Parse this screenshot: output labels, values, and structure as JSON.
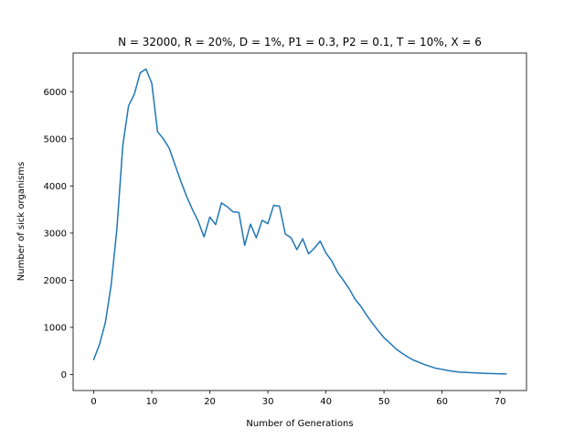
{
  "chart_data": {
    "type": "line",
    "title": "N = 32000, R = 20%, D = 1%, P1 = 0.3, P2 = 0.1, T = 10%, X = 6",
    "xlabel": "Number of Generations",
    "ylabel": "Number of sick organisms",
    "xlim": [
      -3.55,
      74.55
    ],
    "ylim": [
      -340,
      6820
    ],
    "xticks": [
      0,
      10,
      20,
      30,
      40,
      50,
      60,
      70
    ],
    "yticks": [
      0,
      1000,
      2000,
      3000,
      4000,
      5000,
      6000
    ],
    "grid": false,
    "series": [
      {
        "color": "#1f77b4",
        "x": [
          0,
          1,
          2,
          3,
          4,
          5,
          6,
          7,
          8,
          9,
          10,
          11,
          12,
          13,
          14,
          15,
          16,
          17,
          18,
          19,
          20,
          21,
          22,
          23,
          24,
          25,
          26,
          27,
          28,
          29,
          30,
          31,
          32,
          33,
          34,
          35,
          36,
          37,
          38,
          39,
          40,
          41,
          42,
          43,
          44,
          45,
          46,
          47,
          48,
          49,
          50,
          51,
          52,
          53,
          54,
          55,
          56,
          57,
          58,
          59,
          60,
          61,
          62,
          63,
          64,
          65,
          66,
          67,
          68,
          69,
          70,
          71
        ],
        "y": [
          320,
          640,
          1100,
          1900,
          3100,
          4850,
          5700,
          5950,
          6400,
          6480,
          6180,
          5150,
          5000,
          4800,
          4450,
          4100,
          3780,
          3500,
          3250,
          2920,
          3340,
          3180,
          3640,
          3560,
          3450,
          3440,
          2740,
          3190,
          2900,
          3270,
          3200,
          3590,
          3570,
          2980,
          2900,
          2650,
          2880,
          2560,
          2680,
          2830,
          2580,
          2410,
          2170,
          2000,
          1820,
          1600,
          1450,
          1260,
          1090,
          930,
          780,
          670,
          550,
          460,
          380,
          310,
          260,
          210,
          170,
          130,
          110,
          85,
          65,
          50,
          45,
          38,
          33,
          27,
          22,
          18,
          15,
          12
        ]
      }
    ]
  }
}
